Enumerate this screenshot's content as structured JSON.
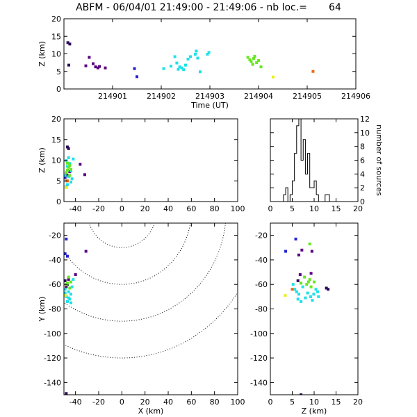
{
  "title": "ABFM - 06/04/01 21:49:00 - 21:49:06 - nb loc.=       64",
  "palette": {
    "purple": "#5a007f",
    "indigo": "#2b0a5c",
    "blue": "#2222d6",
    "cyan": "#1ee0e8",
    "green": "#66e820",
    "yellow": "#e8f020",
    "orange": "#f06a10"
  },
  "chart_data": [
    {
      "id": "time_height",
      "type": "scatter",
      "xlabel": "Time (UT)",
      "ylabel": "Z (km)",
      "xlim": [
        214900,
        214906
      ],
      "ylim": [
        0,
        20
      ],
      "xticks": [
        214901,
        214902,
        214903,
        214904,
        214905,
        214906
      ],
      "xtick_labels": [
        "214901",
        "214902",
        "214903",
        "214904",
        "214905",
        "214906"
      ],
      "yticks": [
        0,
        5,
        10,
        15,
        20
      ],
      "ytick_labels": [
        "0",
        "5",
        "10",
        "15",
        "20"
      ],
      "points": [
        [
          214900.08,
          13.2,
          "indigo"
        ],
        [
          214900.12,
          12.8,
          "indigo"
        ],
        [
          214900.1,
          6.8,
          "indigo"
        ],
        [
          214900.52,
          9.0,
          "purple"
        ],
        [
          214900.6,
          7.2,
          "purple"
        ],
        [
          214900.45,
          6.6,
          "purple"
        ],
        [
          214900.65,
          6.3,
          "purple"
        ],
        [
          214900.7,
          6.0,
          "purple"
        ],
        [
          214900.73,
          6.4,
          "purple"
        ],
        [
          214900.85,
          6.0,
          "purple"
        ],
        [
          214901.45,
          5.8,
          "blue"
        ],
        [
          214901.5,
          3.5,
          "blue"
        ],
        [
          214902.05,
          5.8,
          "cyan"
        ],
        [
          214902.2,
          6.5,
          "cyan"
        ],
        [
          214902.28,
          9.2,
          "cyan"
        ],
        [
          214902.32,
          7.4,
          "cyan"
        ],
        [
          214902.35,
          5.6,
          "cyan"
        ],
        [
          214902.38,
          6.3,
          "cyan"
        ],
        [
          214902.42,
          6.0,
          "cyan"
        ],
        [
          214902.46,
          5.5,
          "cyan"
        ],
        [
          214902.5,
          6.8,
          "cyan"
        ],
        [
          214902.55,
          8.5,
          "cyan"
        ],
        [
          214902.6,
          9.2,
          "cyan"
        ],
        [
          214902.7,
          9.9,
          "cyan"
        ],
        [
          214902.72,
          10.8,
          "cyan"
        ],
        [
          214902.75,
          8.8,
          "cyan"
        ],
        [
          214902.8,
          4.9,
          "cyan"
        ],
        [
          214902.95,
          9.9,
          "cyan"
        ],
        [
          214902.98,
          10.4,
          "cyan"
        ],
        [
          214903.78,
          9.0,
          "green"
        ],
        [
          214903.82,
          8.3,
          "green"
        ],
        [
          214903.85,
          7.8,
          "green"
        ],
        [
          214903.88,
          7.0,
          "green"
        ],
        [
          214903.9,
          8.7,
          "green"
        ],
        [
          214903.92,
          9.3,
          "green"
        ],
        [
          214903.96,
          7.5,
          "green"
        ],
        [
          214904.0,
          8.1,
          "green"
        ],
        [
          214904.05,
          6.3,
          "green"
        ],
        [
          214904.3,
          3.4,
          "yellow"
        ],
        [
          214905.12,
          5.0,
          "orange"
        ]
      ]
    },
    {
      "id": "x_height",
      "type": "scatter",
      "xlabel": "",
      "ylabel": "Z (km)",
      "xlim": [
        -50,
        100
      ],
      "ylim": [
        0,
        20
      ],
      "xticks": [
        -40,
        -20,
        0,
        20,
        40,
        60,
        80,
        100
      ],
      "xtick_labels": [
        "-40",
        "-20",
        "0",
        "20",
        "40",
        "60",
        "80",
        "100"
      ],
      "yticks": [
        0,
        5,
        10,
        15,
        20
      ],
      "ytick_labels": [
        "0",
        "5",
        "10",
        "15",
        "20"
      ],
      "points": [
        [
          -47,
          13.2,
          "indigo"
        ],
        [
          -46,
          12.8,
          "indigo"
        ],
        [
          -48,
          6.8,
          "indigo"
        ],
        [
          -36,
          9.0,
          "purple"
        ],
        [
          -32,
          6.5,
          "purple"
        ],
        [
          -45,
          7.2,
          "purple"
        ],
        [
          -47,
          6.3,
          "purple"
        ],
        [
          -49,
          5.8,
          "blue"
        ],
        [
          -48,
          3.5,
          "blue"
        ],
        [
          -46,
          10.6,
          "cyan"
        ],
        [
          -42,
          10.3,
          "cyan"
        ],
        [
          -48,
          9.9,
          "cyan"
        ],
        [
          -45,
          9.2,
          "cyan"
        ],
        [
          -47,
          8.5,
          "cyan"
        ],
        [
          -44,
          7.4,
          "cyan"
        ],
        [
          -49,
          6.3,
          "cyan"
        ],
        [
          -46,
          6.0,
          "cyan"
        ],
        [
          -43,
          5.5,
          "cyan"
        ],
        [
          -48,
          5.0,
          "cyan"
        ],
        [
          -44,
          4.7,
          "cyan"
        ],
        [
          -47,
          4.1,
          "cyan"
        ],
        [
          -47,
          9.3,
          "green"
        ],
        [
          -45,
          8.7,
          "green"
        ],
        [
          -46,
          8.3,
          "green"
        ],
        [
          -44,
          7.8,
          "green"
        ],
        [
          -48,
          7.0,
          "green"
        ],
        [
          -45,
          6.3,
          "green"
        ],
        [
          -47,
          7.6,
          "green"
        ],
        [
          -48,
          3.4,
          "yellow"
        ],
        [
          -47,
          5.0,
          "orange"
        ]
      ]
    },
    {
      "id": "height_histogram",
      "type": "histogram",
      "xlabel": "",
      "ylabel": "number of sources",
      "xlim": [
        0,
        20
      ],
      "ylim": [
        0,
        12
      ],
      "xticks": [
        0,
        5,
        10,
        15,
        20
      ],
      "xtick_labels": [
        "0",
        "5",
        "10",
        "15",
        "20"
      ],
      "yticks": [
        0,
        2,
        4,
        6,
        8,
        10,
        12
      ],
      "ytick_labels": [
        "0",
        "2",
        "4",
        "6",
        "8",
        "10",
        "12"
      ],
      "bin_width": 0.5,
      "bins": [
        [
          3.0,
          1
        ],
        [
          3.5,
          2
        ],
        [
          4.0,
          0
        ],
        [
          4.5,
          1
        ],
        [
          5.0,
          3
        ],
        [
          5.5,
          7
        ],
        [
          6.0,
          11
        ],
        [
          6.5,
          12
        ],
        [
          7.0,
          6
        ],
        [
          7.5,
          9
        ],
        [
          8.0,
          4
        ],
        [
          8.5,
          7
        ],
        [
          9.0,
          2
        ],
        [
          9.5,
          2
        ],
        [
          10.0,
          3
        ],
        [
          10.5,
          1
        ],
        [
          11.0,
          0
        ],
        [
          11.5,
          0
        ],
        [
          12.0,
          0
        ],
        [
          12.5,
          1
        ],
        [
          13.0,
          1
        ]
      ]
    },
    {
      "id": "plan_view",
      "type": "scatter",
      "xlabel": "X (km)",
      "ylabel": "Y (km)",
      "xlim": [
        -50,
        100
      ],
      "ylim": [
        -150,
        -10
      ],
      "xticks": [
        -40,
        -20,
        0,
        20,
        40,
        60,
        80,
        100
      ],
      "xtick_labels": [
        "-40",
        "-20",
        "0",
        "20",
        "40",
        "60",
        "80",
        "100"
      ],
      "yticks": [
        -140,
        -120,
        -100,
        -80,
        -60,
        -40,
        -20
      ],
      "ytick_labels": [
        "-140",
        "-120",
        "-100",
        "-80",
        "-60",
        "-40",
        "-20"
      ],
      "range_rings": [
        30,
        60,
        90,
        120
      ],
      "points": [
        [
          -48,
          -23,
          "blue"
        ],
        [
          -49,
          -35,
          "blue"
        ],
        [
          -47,
          -37,
          "blue"
        ],
        [
          -31,
          -33,
          "purple"
        ],
        [
          -40,
          -52,
          "purple"
        ],
        [
          -49,
          -57,
          "indigo"
        ],
        [
          -47,
          -60,
          "indigo"
        ],
        [
          -48,
          -62,
          "purple"
        ],
        [
          -46,
          -56,
          "purple"
        ],
        [
          -46,
          -54,
          "green"
        ],
        [
          -44,
          -58,
          "green"
        ],
        [
          -48,
          -60,
          "green"
        ],
        [
          -45,
          -63,
          "green"
        ],
        [
          -47,
          -59,
          "green"
        ],
        [
          -49,
          -64,
          "cyan"
        ],
        [
          -46,
          -66,
          "cyan"
        ],
        [
          -44,
          -68,
          "cyan"
        ],
        [
          -48,
          -70,
          "cyan"
        ],
        [
          -45,
          -72,
          "cyan"
        ],
        [
          -47,
          -74,
          "cyan"
        ],
        [
          -43,
          -62,
          "cyan"
        ],
        [
          -42,
          -56,
          "cyan"
        ],
        [
          -49,
          -67,
          "cyan"
        ],
        [
          -46,
          -71,
          "cyan"
        ],
        [
          -44,
          -75,
          "cyan"
        ],
        [
          -49,
          -69,
          "yellow"
        ],
        [
          -48,
          -149,
          "indigo"
        ]
      ]
    },
    {
      "id": "z_y",
      "type": "scatter",
      "xlabel": "Z (km)",
      "ylabel": "",
      "xlim": [
        0,
        20
      ],
      "ylim": [
        -150,
        -10
      ],
      "xticks": [
        0,
        5,
        10,
        15,
        20
      ],
      "xtick_labels": [
        "0",
        "5",
        "10",
        "15",
        "20"
      ],
      "yticks": [
        -140,
        -120,
        -100,
        -80,
        -60,
        -40,
        -20
      ],
      "ytick_labels": [
        "-140",
        "-120",
        "-100",
        "-80",
        "-60",
        "-40",
        "-20"
      ],
      "points": [
        [
          5.8,
          -23,
          "blue"
        ],
        [
          3.5,
          -33,
          "blue"
        ],
        [
          6.5,
          -36,
          "purple"
        ],
        [
          7.2,
          -32,
          "purple"
        ],
        [
          9.0,
          -27,
          "green"
        ],
        [
          9.5,
          -33,
          "purple"
        ],
        [
          6.8,
          -52,
          "purple"
        ],
        [
          13.2,
          -64,
          "indigo"
        ],
        [
          12.8,
          -63,
          "indigo"
        ],
        [
          6.3,
          -57,
          "indigo"
        ],
        [
          9.3,
          -51,
          "purple"
        ],
        [
          9.0,
          -56,
          "green"
        ],
        [
          8.7,
          -58,
          "green"
        ],
        [
          8.3,
          -60,
          "green"
        ],
        [
          7.8,
          -54,
          "green"
        ],
        [
          9.3,
          -62,
          "green"
        ],
        [
          7.0,
          -59,
          "green"
        ],
        [
          10.0,
          -58,
          "green"
        ],
        [
          5.6,
          -64,
          "cyan"
        ],
        [
          6.0,
          -66,
          "cyan"
        ],
        [
          6.5,
          -68,
          "cyan"
        ],
        [
          7.4,
          -62,
          "cyan"
        ],
        [
          8.5,
          -67,
          "cyan"
        ],
        [
          9.2,
          -70,
          "cyan"
        ],
        [
          9.9,
          -68,
          "cyan"
        ],
        [
          10.8,
          -66,
          "cyan"
        ],
        [
          10.4,
          -64,
          "cyan"
        ],
        [
          6.3,
          -72,
          "cyan"
        ],
        [
          7.0,
          -74,
          "cyan"
        ],
        [
          8.0,
          -71,
          "cyan"
        ],
        [
          5.2,
          -60,
          "cyan"
        ],
        [
          9.6,
          -73,
          "cyan"
        ],
        [
          11.0,
          -70,
          "cyan"
        ],
        [
          3.4,
          -69,
          "yellow"
        ],
        [
          5.0,
          -64,
          "orange"
        ],
        [
          7.0,
          -150,
          "indigo"
        ]
      ]
    }
  ]
}
